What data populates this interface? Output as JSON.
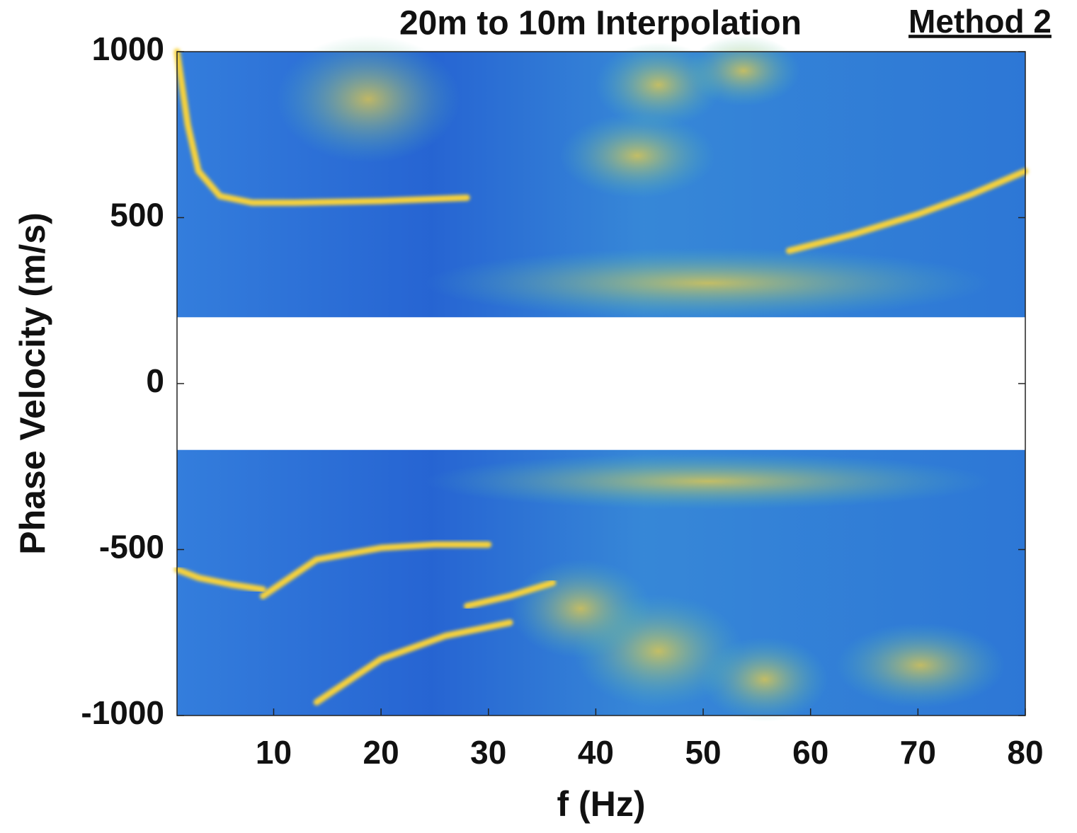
{
  "chart_data": {
    "type": "heatmap",
    "title": "20m to 10m Interpolation",
    "annotation": "Method 2",
    "annotation_color": "#ff0000",
    "xlabel": "f (Hz)",
    "ylabel": "Phase Velocity (m/s)",
    "xlim": [
      1,
      80
    ],
    "ylim": [
      -1000,
      1000
    ],
    "xticks": [
      10,
      20,
      30,
      40,
      50,
      60,
      70,
      80
    ],
    "yticks": [
      -1000,
      -500,
      0,
      500,
      1000
    ],
    "mask": [
      -200,
      200
    ],
    "background_color": "#2a6bd6",
    "series": [
      {
        "color": "#f7d23a",
        "x": [
          1,
          2,
          3,
          5,
          8,
          12,
          20,
          28
        ],
        "values": [
          1000,
          780,
          640,
          565,
          545,
          545,
          550,
          560
        ]
      },
      {
        "color": "#f7d23a",
        "x": [
          58,
          64,
          70,
          75,
          80
        ],
        "values": [
          400,
          450,
          510,
          570,
          640
        ]
      },
      {
        "color": "#f7d23a",
        "x": [
          9,
          14,
          20,
          25,
          30
        ],
        "values": [
          -640,
          -530,
          -495,
          -485,
          -485
        ]
      },
      {
        "color": "#f7d23a",
        "x": [
          28,
          32,
          36
        ],
        "values": [
          -670,
          -640,
          -600
        ]
      },
      {
        "color": "#f7d23a",
        "x": [
          14,
          20,
          26,
          32
        ],
        "values": [
          -960,
          -830,
          -760,
          -720
        ]
      },
      {
        "color": "#f7d23a",
        "x": [
          1,
          3,
          6,
          9
        ],
        "values": [
          -560,
          -585,
          -605,
          -620
        ]
      }
    ]
  }
}
